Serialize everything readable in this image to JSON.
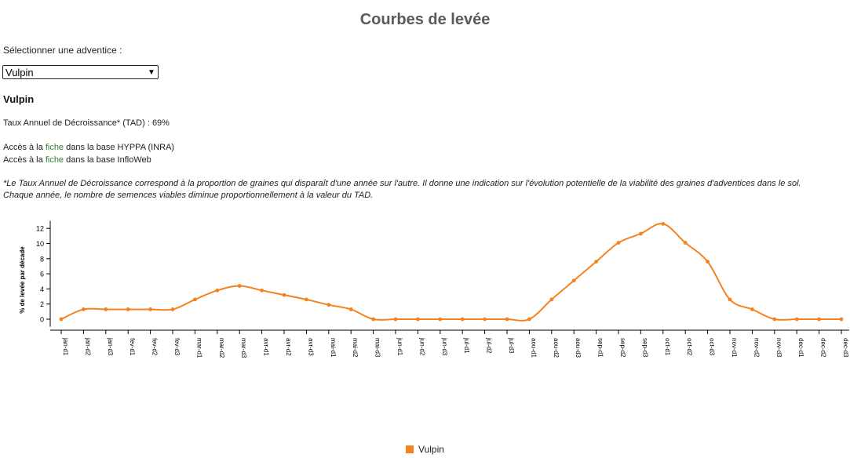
{
  "page": {
    "title": "Courbes de levée",
    "select_label": "Sélectionner une adventice :",
    "selected_weed": "Vulpin",
    "species_title": "Vulpin",
    "tad_text": "Taux Annuel de Décroissance* (TAD) : 69%",
    "access1": {
      "before": "Accès à la ",
      "link": "fiche",
      "after": " dans la base HYPPA (INRA)"
    },
    "access2": {
      "before": "Accès à la ",
      "link": "fiche",
      "after": " dans la base InfloWeb"
    },
    "note_line1": "*Le Taux Annuel de Décroissance correspond à la proportion de graines qui disparaît d'une année sur l'autre. Il donne une indication sur l'évolution potentielle de la viabilité des graines d'adventices dans le sol.",
    "note_line2": "Chaque année, le nombre de semences viables diminue proportionnellement à la valeur du TAD.",
    "legend_label": "Vulpin"
  },
  "colors": {
    "series": "#f5821f",
    "link": "#2e7d32",
    "title": "#5a5a5a"
  },
  "chart_data": {
    "type": "line",
    "ylabel": "% de levée par décade",
    "xlabel": "",
    "ylim": [
      -1,
      13
    ],
    "yticks": [
      0,
      2,
      4,
      6,
      8,
      10,
      12
    ],
    "grid": false,
    "legend_position": "bottom",
    "categories": [
      "jan-d1",
      "jan-d2",
      "jan-d3",
      "fev-d1",
      "fev-d2",
      "fev-d3",
      "mar-d1",
      "mar-d2",
      "mar-d3",
      "avr-d1",
      "avr-d2",
      "avr-d3",
      "mai-d1",
      "mai-d2",
      "mai-d3",
      "jun-d1",
      "jun-d2",
      "jun-d3",
      "jul-d1",
      "jul-d2",
      "jul-d3",
      "aou-d1",
      "aou-d2",
      "aou-d3",
      "sep-d1",
      "sep-d2",
      "sep-d3",
      "oct-d1",
      "oct-d2",
      "oct-d3",
      "nov-d1",
      "nov-d2",
      "nov-d3",
      "dec-d1",
      "dec-d2",
      "dec-d3"
    ],
    "series": [
      {
        "name": "Vulpin",
        "values": [
          0,
          1.3,
          1.3,
          1.3,
          1.3,
          1.3,
          2.6,
          3.8,
          4.4,
          3.8,
          3.2,
          2.6,
          1.9,
          1.3,
          0,
          0,
          0,
          0,
          0,
          0,
          0,
          0,
          2.6,
          5.1,
          7.6,
          10.1,
          11.3,
          12.6,
          10.1,
          7.6,
          2.6,
          1.3,
          0,
          0,
          0,
          0
        ]
      }
    ]
  }
}
